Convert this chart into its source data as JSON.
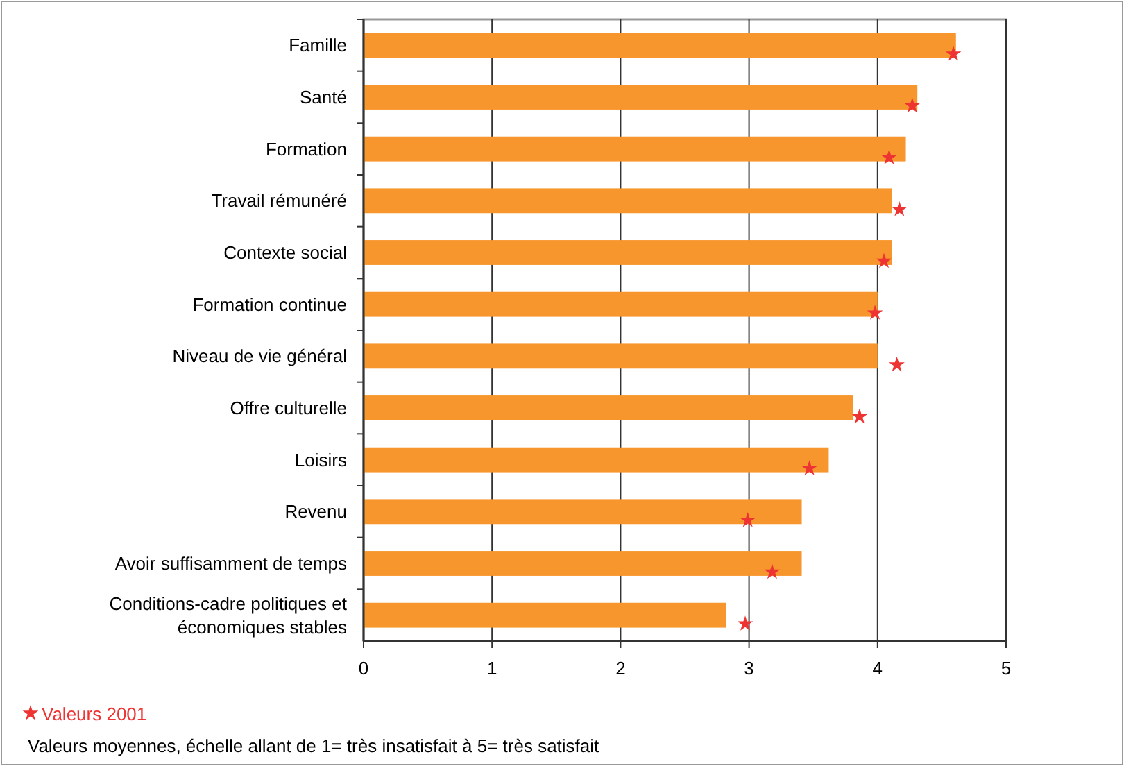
{
  "chart_data": {
    "type": "bar",
    "orientation": "horizontal",
    "categories": [
      "Famille",
      "Santé",
      "Formation",
      "Travail rémunéré",
      "Contexte social",
      "Formation continue",
      "Niveau de vie général",
      "Offre culturelle",
      "Loisirs",
      "Revenu",
      "Avoir suffisamment de temps",
      "Conditions-cadre politiques et économiques stables"
    ],
    "series": [
      {
        "color": "#f7962d",
        "values": [
          4.61,
          4.31,
          4.22,
          4.11,
          4.11,
          4.0,
          4.0,
          3.81,
          3.62,
          3.41,
          3.41,
          2.82
        ]
      },
      {
        "type": "scatter",
        "name": "Valeurs 2001",
        "color": "#ee3333",
        "marker": "star",
        "x": [
          "Famille",
          "Santé",
          "Formation",
          "Travail rémunéré",
          "Contexte social",
          "Formation continue",
          "Niveau de vie général",
          "Offre culturelle",
          "Loisirs",
          "Revenu",
          "Avoir suffisamment de temps",
          "Conditions-cadre politiques et économiques stables"
        ],
        "values": [
          4.59,
          4.27,
          4.09,
          4.17,
          4.05,
          3.98,
          4.15,
          3.86,
          3.47,
          2.99,
          3.18,
          2.97
        ]
      }
    ],
    "xlim": [
      0,
      5
    ],
    "xticks": [
      0,
      1,
      2,
      3,
      4,
      5
    ],
    "grid": "x",
    "legend": "bottom left",
    "annotations": [
      "Valeurs moyennes, échelle allant de 1= très insatisfait à 5= très satisfait"
    ]
  }
}
